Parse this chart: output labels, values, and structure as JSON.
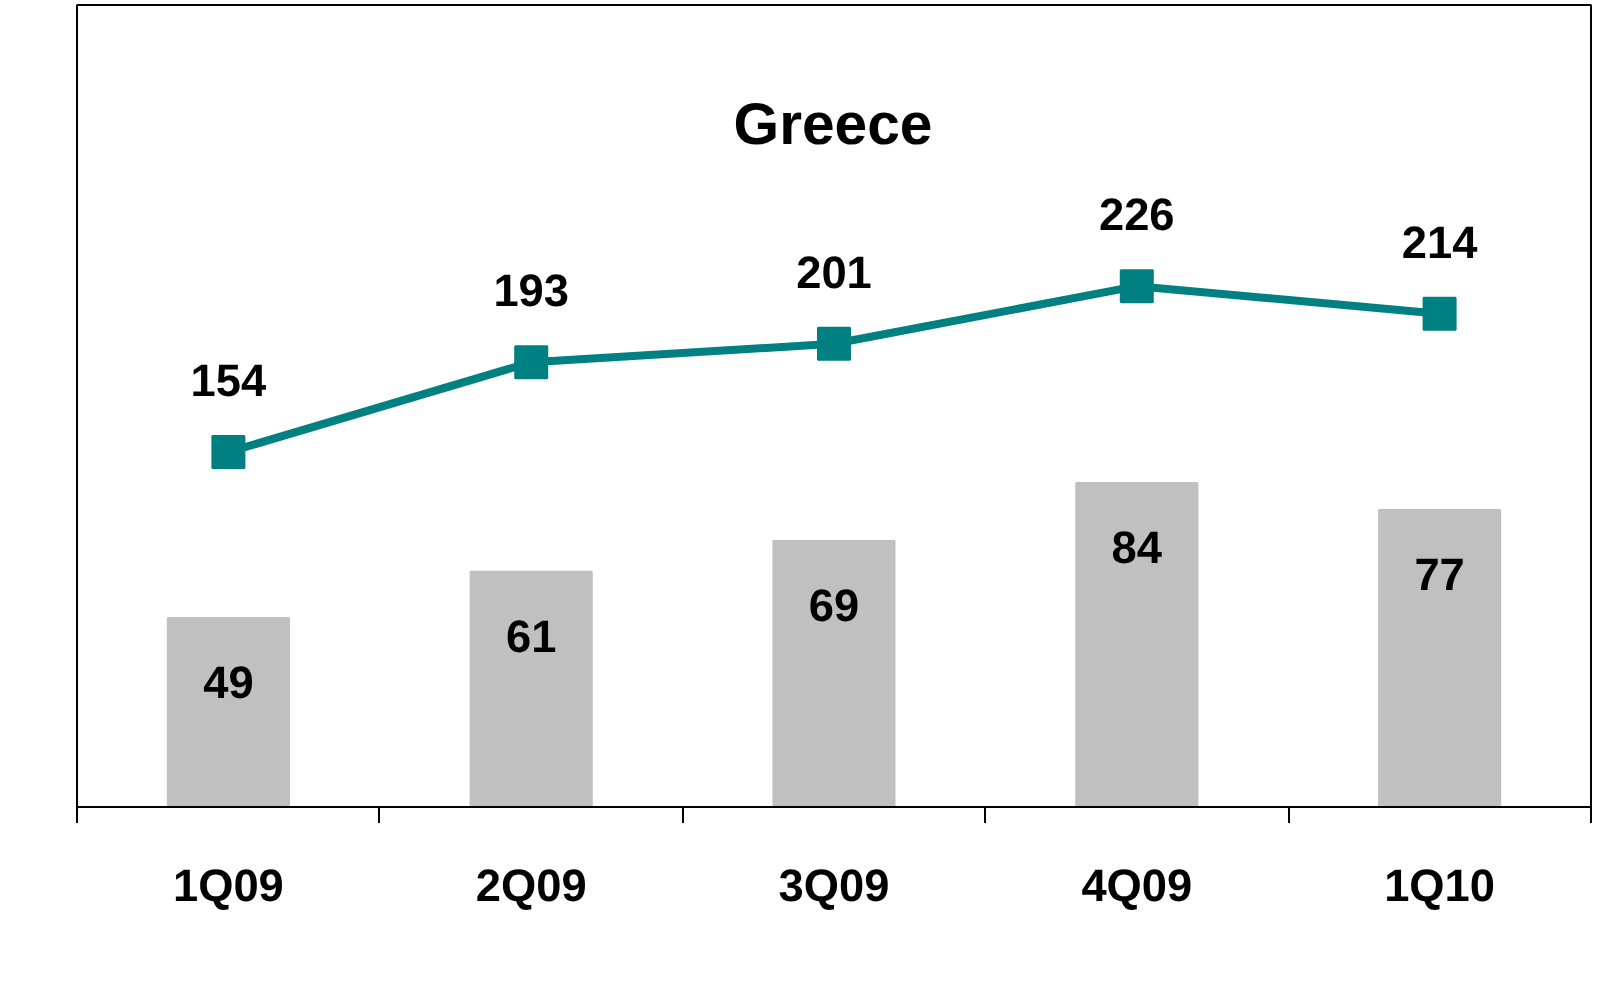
{
  "chart_data": {
    "type": "bar",
    "title": "Greece",
    "categories": [
      "1Q09",
      "2Q09",
      "3Q09",
      "4Q09",
      "1Q10"
    ],
    "series": [
      {
        "type": "bar",
        "color": "#c0c0c0",
        "values": [
          49,
          61,
          69,
          84,
          77
        ]
      },
      {
        "type": "line",
        "axis": "y2",
        "color": "#008080",
        "values": [
          154,
          193,
          201,
          226,
          214
        ]
      }
    ],
    "ylim": [
      0,
      208
    ],
    "y2lim": [
      0,
      348
    ],
    "data_labels": true,
    "marker": "square",
    "line_style": "solid",
    "tick_labels": "x"
  }
}
